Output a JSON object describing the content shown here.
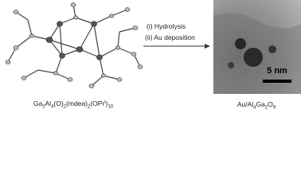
{
  "precursor_label": [
    {
      "text": "Ga"
    },
    {
      "text": "2",
      "shift": "sub"
    },
    {
      "text": "Al"
    },
    {
      "text": "4",
      "shift": "sub"
    },
    {
      "text": "(O)"
    },
    {
      "text": "2",
      "shift": "sub"
    },
    {
      "text": "(mdea)"
    },
    {
      "text": "2",
      "shift": "sub"
    },
    {
      "text": "(OPr"
    },
    {
      "text": "i",
      "shift": "sup"
    },
    {
      "text": ")"
    },
    {
      "text": "10",
      "shift": "sub"
    }
  ],
  "steps": [
    "(i) Hydrolysis",
    "(ii) Au deposition"
  ],
  "scale_bar": "5 nm",
  "product_label": [
    {
      "text": "Au/Al"
    },
    {
      "text": "4",
      "shift": "sub"
    },
    {
      "text": "Ga"
    },
    {
      "text": "2",
      "shift": "sub"
    },
    {
      "text": "O"
    },
    {
      "text": "9",
      "shift": "sub"
    }
  ]
}
